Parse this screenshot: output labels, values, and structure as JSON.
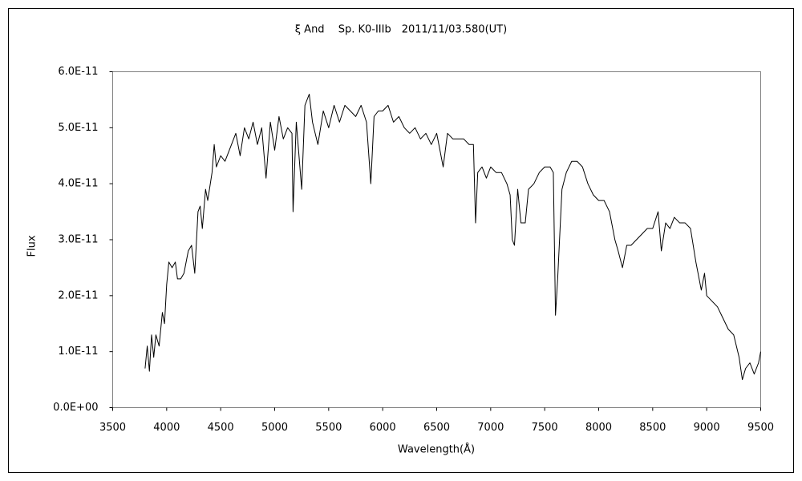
{
  "chart_data": {
    "type": "line",
    "title": "ξ And　 Sp. K0-IIIb　2011/11/03.580(UT)",
    "x_label": "Wavelength(Å)",
    "y_label": "Flux",
    "xlim": [
      3500,
      9500
    ],
    "xticks": [
      3500,
      4000,
      4500,
      5000,
      5500,
      6000,
      6500,
      7000,
      7500,
      8000,
      8500,
      9000,
      9500
    ],
    "ylim": [
      0,
      6e-11
    ],
    "yticks": [
      {
        "value": 0,
        "label": "0.0E+00"
      },
      {
        "value": 1e-11,
        "label": "1.0E-11"
      },
      {
        "value": 2e-11,
        "label": "2.0E-11"
      },
      {
        "value": 3e-11,
        "label": "3.0E-11"
      },
      {
        "value": 4e-11,
        "label": "4.0E-11"
      },
      {
        "value": 5e-11,
        "label": "5.0E-11"
      },
      {
        "value": 6e-11,
        "label": "6.0E-11"
      }
    ],
    "grid": false,
    "color": "#000000",
    "x": [
      3800,
      3820,
      3840,
      3860,
      3880,
      3900,
      3930,
      3960,
      3980,
      4000,
      4020,
      4050,
      4080,
      4100,
      4130,
      4160,
      4200,
      4230,
      4260,
      4290,
      4310,
      4330,
      4360,
      4380,
      4420,
      4440,
      4460,
      4500,
      4540,
      4580,
      4600,
      4640,
      4680,
      4720,
      4760,
      4800,
      4840,
      4880,
      4920,
      4960,
      5000,
      5040,
      5080,
      5120,
      5160,
      5170,
      5200,
      5250,
      5280,
      5320,
      5350,
      5400,
      5450,
      5500,
      5550,
      5600,
      5650,
      5700,
      5750,
      5800,
      5850,
      5890,
      5920,
      5960,
      6000,
      6050,
      6100,
      6150,
      6200,
      6250,
      6300,
      6350,
      6400,
      6450,
      6500,
      6530,
      6560,
      6600,
      6650,
      6700,
      6750,
      6800,
      6840,
      6860,
      6880,
      6920,
      6960,
      7000,
      7050,
      7100,
      7150,
      7180,
      7200,
      7220,
      7250,
      7280,
      7320,
      7350,
      7400,
      7450,
      7500,
      7550,
      7580,
      7600,
      7620,
      7660,
      7700,
      7750,
      7800,
      7850,
      7900,
      7950,
      8000,
      8050,
      8100,
      8150,
      8180,
      8220,
      8260,
      8300,
      8350,
      8400,
      8450,
      8500,
      8550,
      8580,
      8620,
      8660,
      8700,
      8750,
      8800,
      8850,
      8900,
      8950,
      8980,
      9000,
      9050,
      9100,
      9150,
      9200,
      9250,
      9300,
      9330,
      9360,
      9400,
      9440,
      9480,
      9500
    ],
    "values": [
      7e-12,
      1.1e-11,
      6.5e-12,
      1.3e-11,
      9e-12,
      1.3e-11,
      1.1e-11,
      1.7e-11,
      1.5e-11,
      2.2e-11,
      2.6e-11,
      2.5e-11,
      2.6e-11,
      2.3e-11,
      2.3e-11,
      2.4e-11,
      2.8e-11,
      2.9e-11,
      2.4e-11,
      3.5e-11,
      3.6e-11,
      3.2e-11,
      3.9e-11,
      3.7e-11,
      4.2e-11,
      4.7e-11,
      4.3e-11,
      4.5e-11,
      4.4e-11,
      4.6e-11,
      4.7e-11,
      4.9e-11,
      4.5e-11,
      5e-11,
      4.8e-11,
      5.1e-11,
      4.7e-11,
      5e-11,
      4.1e-11,
      5.1e-11,
      4.6e-11,
      5.2e-11,
      4.8e-11,
      5e-11,
      4.9e-11,
      3.5e-11,
      5.1e-11,
      3.9e-11,
      5.4e-11,
      5.6e-11,
      5.1e-11,
      4.7e-11,
      5.3e-11,
      5e-11,
      5.4e-11,
      5.1e-11,
      5.4e-11,
      5.3e-11,
      5.2e-11,
      5.4e-11,
      5.1e-11,
      4e-11,
      5.2e-11,
      5.3e-11,
      5.3e-11,
      5.4e-11,
      5.1e-11,
      5.2e-11,
      5e-11,
      4.9e-11,
      5e-11,
      4.8e-11,
      4.9e-11,
      4.7e-11,
      4.9e-11,
      4.6e-11,
      4.3e-11,
      4.9e-11,
      4.8e-11,
      4.8e-11,
      4.8e-11,
      4.7e-11,
      4.7e-11,
      3.3e-11,
      4.2e-11,
      4.3e-11,
      4.1e-11,
      4.3e-11,
      4.2e-11,
      4.2e-11,
      4e-11,
      3.8e-11,
      3e-11,
      2.9e-11,
      3.9e-11,
      3.3e-11,
      3.3e-11,
      3.9e-11,
      4e-11,
      4.2e-11,
      4.3e-11,
      4.3e-11,
      4.2e-11,
      1.65e-11,
      2.3e-11,
      3.9e-11,
      4.2e-11,
      4.4e-11,
      4.4e-11,
      4.3e-11,
      4e-11,
      3.8e-11,
      3.7e-11,
      3.7e-11,
      3.5e-11,
      3e-11,
      2.8e-11,
      2.5e-11,
      2.9e-11,
      2.9e-11,
      3e-11,
      3.1e-11,
      3.2e-11,
      3.2e-11,
      3.5e-11,
      2.8e-11,
      3.3e-11,
      3.2e-11,
      3.4e-11,
      3.3e-11,
      3.3e-11,
      3.2e-11,
      2.6e-11,
      2.1e-11,
      2.4e-11,
      2e-11,
      1.9e-11,
      1.8e-11,
      1.6e-11,
      1.4e-11,
      1.3e-11,
      9e-12,
      5e-12,
      7e-12,
      8e-12,
      6e-12,
      8e-12,
      1e-11
    ]
  }
}
